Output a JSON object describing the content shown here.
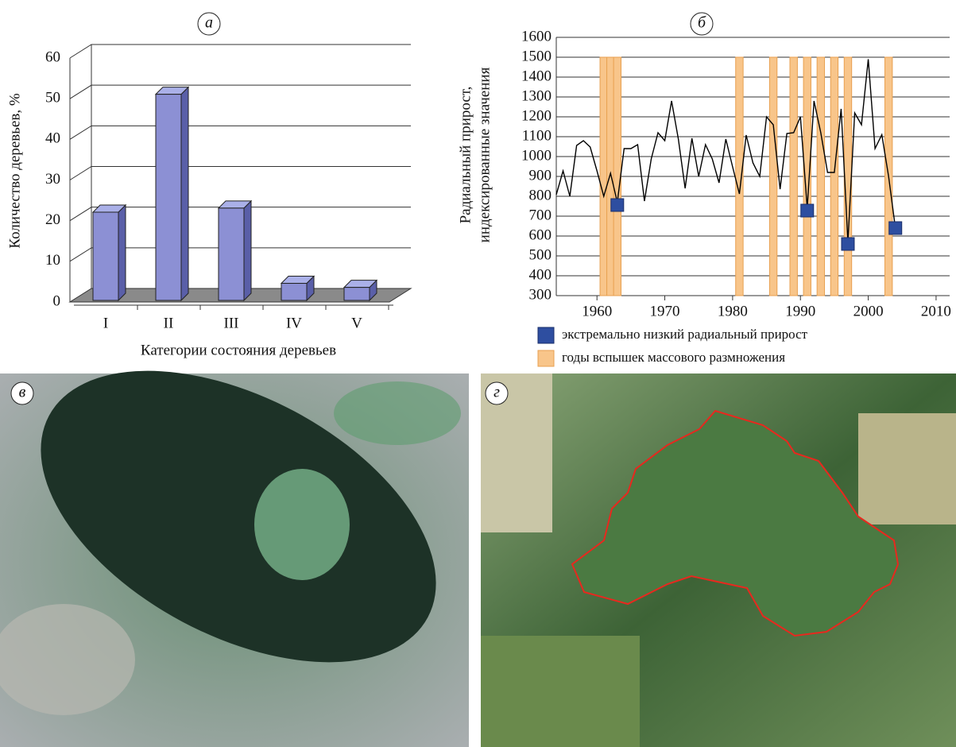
{
  "chart_data": [
    {
      "type": "bar3d",
      "title": "а",
      "y_label": "Количество деревьев, %",
      "x_label": "Категории состояния деревьев",
      "categories": [
        "I",
        "II",
        "III",
        "IV",
        "V"
      ],
      "values": [
        21.5,
        50.5,
        22.5,
        4,
        3
      ],
      "color": "#8c90d4",
      "ylim": [
        0,
        60
      ],
      "yticks": [
        0,
        10,
        20,
        30,
        40,
        50,
        60
      ],
      "grid": true
    },
    {
      "type": "line",
      "title": "б",
      "y_label": [
        "Радиальный прирост,",
        "индексированные значения"
      ],
      "xlim": [
        1954,
        2012
      ],
      "xticks": [
        1960,
        1970,
        1980,
        1990,
        2000,
        2010
      ],
      "ylim": [
        300,
        1600
      ],
      "yticks": [
        300,
        400,
        500,
        600,
        700,
        800,
        900,
        1000,
        1100,
        1200,
        1300,
        1400,
        1500,
        1600
      ],
      "grid": true,
      "series": [
        {
          "kind": "line",
          "color": "#000000",
          "x": [
            1954,
            1955,
            1956,
            1957,
            1958,
            1959,
            1960,
            1961,
            1962,
            1963,
            1964,
            1965,
            1966,
            1967,
            1968,
            1969,
            1970,
            1971,
            1972,
            1973,
            1974,
            1975,
            1976,
            1977,
            1978,
            1979,
            1980,
            1981,
            1982,
            1983,
            1984,
            1985,
            1986,
            1987,
            1988,
            1989,
            1990,
            1991,
            1992,
            1993,
            1994,
            1995,
            1996,
            1997,
            1998,
            1999,
            2000,
            2001,
            2002,
            2003,
            2004
          ],
          "values": [
            808,
            928,
            800,
            1056,
            1080,
            1048,
            928,
            800,
            916,
            770,
            1040,
            1040,
            1060,
            776,
            988,
            1120,
            1080,
            1280,
            1088,
            840,
            1092,
            900,
            1060,
            988,
            868,
            1088,
            948,
            812,
            1108,
            968,
            900,
            1200,
            1160,
            836,
            1116,
            1120,
            1200,
            740,
            1280,
            1120,
            920,
            920,
            1240,
            570,
            1220,
            1160,
            1490,
            1040,
            1110,
            900,
            640
          ]
        },
        {
          "kind": "square",
          "name": "экстремально низкий радиальный прирост",
          "color": "#2e4ea0",
          "x": [
            1963,
            1991,
            1997,
            2004
          ],
          "values": [
            756,
            728,
            560,
            640
          ]
        },
        {
          "kind": "band",
          "name": "годы вспышек массового размножения",
          "color": "#f8c58a",
          "x": [
            1961,
            1962,
            1963,
            1981,
            1986,
            1989,
            1991,
            1993,
            1995,
            1997,
            2003
          ],
          "values": [
            1500,
            1500,
            1500,
            1500,
            1500,
            1500,
            1500,
            1500,
            1500,
            1500,
            1500
          ]
        }
      ]
    }
  ],
  "images": [
    {
      "label": "в"
    },
    {
      "label": "г"
    }
  ]
}
